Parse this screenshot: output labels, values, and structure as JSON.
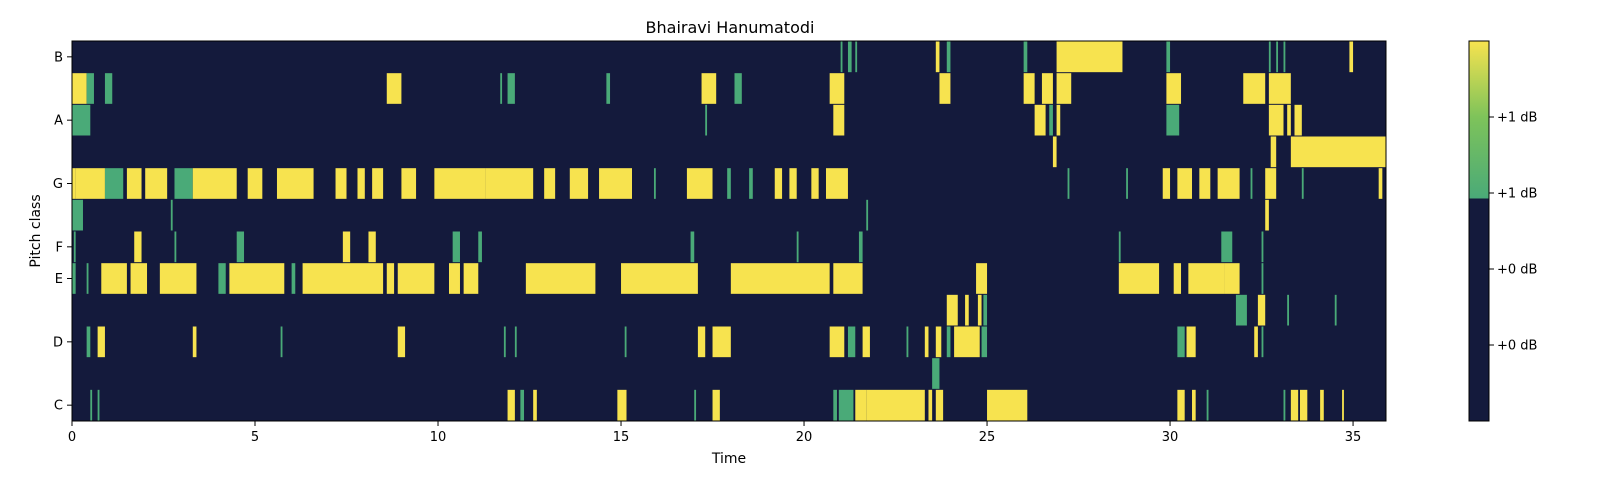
{
  "chart_data": {
    "type": "heatmap",
    "title": "Bhairavi Hanumatodi",
    "xlabel": "Time",
    "ylabel": "Pitch class",
    "xlim": [
      0,
      35.9
    ],
    "x_ticks": [
      0,
      5,
      10,
      15,
      20,
      25,
      30,
      35
    ],
    "x_tick_labels": [
      "0",
      "5",
      "10",
      "15",
      "20",
      "25",
      "30",
      "35"
    ],
    "rows": [
      "C",
      "C#",
      "D",
      "D#",
      "E",
      "F",
      "F#",
      "G",
      "G#",
      "A",
      "A#",
      "B"
    ],
    "y_tick_labels": [
      "C",
      "D",
      "E",
      "F",
      "G",
      "A",
      "B"
    ],
    "colormap": {
      "low": "#141a3c",
      "mid": "#4aaa78",
      "high": "#f7e34f"
    },
    "colorbar_labels": [
      "+1 dB",
      "+1 dB",
      "+0 dB",
      "+0 dB"
    ],
    "segments": [
      {
        "pitch": "C",
        "intervals": [
          [
            0.5,
            0.55,
            1
          ],
          [
            0.7,
            0.75,
            1
          ],
          [
            11.9,
            12.1,
            2
          ],
          [
            12.25,
            12.35,
            1
          ],
          [
            12.6,
            12.7,
            2
          ],
          [
            14.9,
            15.15,
            2
          ],
          [
            17,
            17.05,
            1
          ],
          [
            17.5,
            17.7,
            2
          ],
          [
            20.8,
            20.9,
            1
          ],
          [
            20.95,
            21.35,
            1
          ],
          [
            21.4,
            21.7,
            2
          ],
          [
            21.7,
            23.3,
            2
          ],
          [
            23.4,
            23.5,
            2
          ],
          [
            23.6,
            23.8,
            2
          ],
          [
            25,
            26.1,
            2
          ],
          [
            30.2,
            30.4,
            2
          ],
          [
            30.6,
            30.7,
            2
          ],
          [
            31,
            31.05,
            1
          ],
          [
            33.1,
            33.15,
            1
          ],
          [
            33.3,
            33.5,
            2
          ],
          [
            33.55,
            33.75,
            2
          ],
          [
            34.1,
            34.2,
            2
          ],
          [
            34.7,
            34.75,
            2
          ]
        ]
      },
      {
        "pitch": "C#",
        "intervals": [
          [
            23.5,
            23.7,
            1
          ]
        ]
      },
      {
        "pitch": "D",
        "intervals": [
          [
            0.4,
            0.5,
            1
          ],
          [
            0.7,
            0.9,
            2
          ],
          [
            3.3,
            3.4,
            2
          ],
          [
            5.7,
            5.75,
            1
          ],
          [
            8.9,
            9.1,
            2
          ],
          [
            11.8,
            11.85,
            1
          ],
          [
            12.1,
            12.15,
            1
          ],
          [
            15.1,
            15.15,
            1
          ],
          [
            17.1,
            17.3,
            2
          ],
          [
            17.5,
            18,
            2
          ],
          [
            20.7,
            21.1,
            2
          ],
          [
            21.2,
            21.4,
            1
          ],
          [
            21.6,
            21.8,
            2
          ],
          [
            22.8,
            22.85,
            1
          ],
          [
            23.3,
            23.4,
            2
          ],
          [
            23.6,
            23.75,
            2
          ],
          [
            23.9,
            24,
            1
          ],
          [
            24.1,
            24.8,
            2
          ],
          [
            24.85,
            25,
            1
          ],
          [
            30.2,
            30.4,
            1
          ],
          [
            30.45,
            30.7,
            2
          ],
          [
            32.3,
            32.4,
            2
          ],
          [
            32.5,
            32.55,
            1
          ]
        ]
      },
      {
        "pitch": "D#",
        "intervals": [
          [
            23.9,
            24.2,
            2
          ],
          [
            24.4,
            24.5,
            2
          ],
          [
            24.75,
            24.85,
            2
          ],
          [
            24.9,
            25,
            1
          ],
          [
            31.8,
            32.1,
            1
          ],
          [
            32.4,
            32.6,
            2
          ],
          [
            33.2,
            33.25,
            1
          ],
          [
            34.5,
            34.55,
            1
          ]
        ]
      },
      {
        "pitch": "E",
        "intervals": [
          [
            0,
            0.1,
            1
          ],
          [
            0.4,
            0.45,
            1
          ],
          [
            0.8,
            1.5,
            2
          ],
          [
            1.6,
            2.05,
            2
          ],
          [
            2.4,
            3.4,
            2
          ],
          [
            4,
            4.2,
            1
          ],
          [
            4.3,
            5.8,
            2
          ],
          [
            6,
            6.1,
            1
          ],
          [
            6.3,
            8.5,
            2
          ],
          [
            8.6,
            8.8,
            2
          ],
          [
            8.9,
            9.9,
            2
          ],
          [
            10.3,
            10.6,
            2
          ],
          [
            10.7,
            11.1,
            2
          ],
          [
            12.4,
            14.3,
            2
          ],
          [
            15,
            17.1,
            2
          ],
          [
            18,
            20.7,
            2
          ],
          [
            20.8,
            21.6,
            2
          ],
          [
            24.7,
            25,
            2
          ],
          [
            28.6,
            29.7,
            2
          ],
          [
            30.1,
            30.3,
            2
          ],
          [
            30.5,
            31.5,
            2
          ],
          [
            31.5,
            31.9,
            2
          ],
          [
            32.5,
            32.55,
            1
          ]
        ]
      },
      {
        "pitch": "F",
        "intervals": [
          [
            0.05,
            0.1,
            1
          ],
          [
            1.7,
            1.9,
            2
          ],
          [
            2.8,
            2.85,
            1
          ],
          [
            4.5,
            4.7,
            1
          ],
          [
            7.4,
            7.6,
            2
          ],
          [
            8.1,
            8.3,
            2
          ],
          [
            10.4,
            10.6,
            1
          ],
          [
            11.1,
            11.2,
            1
          ],
          [
            16.9,
            17,
            1
          ],
          [
            19.8,
            19.85,
            1
          ],
          [
            21.5,
            21.6,
            1
          ],
          [
            28.6,
            28.65,
            1
          ],
          [
            31.4,
            31.7,
            1
          ],
          [
            32.5,
            32.55,
            1
          ]
        ]
      },
      {
        "pitch": "F#",
        "intervals": [
          [
            0,
            0.3,
            1
          ],
          [
            2.7,
            2.75,
            1
          ],
          [
            21.7,
            21.75,
            1
          ],
          [
            32.6,
            32.7,
            2
          ]
        ]
      },
      {
        "pitch": "G",
        "intervals": [
          [
            0,
            0.1,
            2
          ],
          [
            0.1,
            0.9,
            2
          ],
          [
            0.9,
            1.4,
            1
          ],
          [
            1.5,
            1.9,
            2
          ],
          [
            2.0,
            2.6,
            2
          ],
          [
            2.8,
            3.3,
            1
          ],
          [
            3.3,
            4.5,
            2
          ],
          [
            4.8,
            5.2,
            2
          ],
          [
            5.6,
            6.6,
            2
          ],
          [
            7.2,
            7.5,
            2
          ],
          [
            7.8,
            8.0,
            2
          ],
          [
            8.2,
            8.5,
            2
          ],
          [
            9.0,
            9.4,
            2
          ],
          [
            9.9,
            11.3,
            2
          ],
          [
            11.3,
            12.6,
            2
          ],
          [
            12.9,
            13.2,
            2
          ],
          [
            13.6,
            14.1,
            2
          ],
          [
            14.4,
            15.3,
            2
          ],
          [
            15.9,
            15.95,
            1
          ],
          [
            16.8,
            17.5,
            2
          ],
          [
            17.9,
            18.0,
            1
          ],
          [
            18.5,
            18.6,
            1
          ],
          [
            19.2,
            19.4,
            2
          ],
          [
            19.6,
            19.8,
            2
          ],
          [
            20.2,
            20.4,
            2
          ],
          [
            20.6,
            21.2,
            2
          ],
          [
            27.2,
            27.25,
            1
          ],
          [
            28.8,
            28.85,
            1
          ],
          [
            29.8,
            30.0,
            2
          ],
          [
            30.2,
            30.6,
            2
          ],
          [
            30.8,
            31.1,
            2
          ],
          [
            31.3,
            31.9,
            2
          ],
          [
            32.2,
            32.25,
            1
          ],
          [
            32.6,
            32.9,
            2
          ],
          [
            33.6,
            33.65,
            1
          ],
          [
            35.7,
            35.8,
            2
          ]
        ]
      },
      {
        "pitch": "G#",
        "intervals": [
          [
            26.8,
            26.9,
            2
          ],
          [
            32.75,
            32.9,
            2
          ],
          [
            33.3,
            35.9,
            2
          ]
        ]
      },
      {
        "pitch": "A",
        "intervals": [
          [
            0,
            0.5,
            1
          ],
          [
            17.3,
            17.35,
            1
          ],
          [
            20.8,
            21.1,
            2
          ],
          [
            26.3,
            26.6,
            2
          ],
          [
            26.7,
            26.8,
            1
          ],
          [
            26.9,
            27.0,
            2
          ],
          [
            29.9,
            30.25,
            1
          ],
          [
            32.7,
            33.1,
            2
          ],
          [
            33.2,
            33.3,
            2
          ],
          [
            33.4,
            33.6,
            2
          ]
        ]
      },
      {
        "pitch": "A#",
        "intervals": [
          [
            0,
            0.4,
            2
          ],
          [
            0.4,
            0.6,
            1
          ],
          [
            0.9,
            1.1,
            1
          ],
          [
            8.6,
            9,
            2
          ],
          [
            11.7,
            11.75,
            1
          ],
          [
            11.9,
            12.1,
            1
          ],
          [
            14.6,
            14.7,
            1
          ],
          [
            17.2,
            17.6,
            2
          ],
          [
            18.1,
            18.3,
            1
          ],
          [
            20.7,
            21.1,
            2
          ],
          [
            23.7,
            24,
            2
          ],
          [
            26,
            26.3,
            2
          ],
          [
            26.5,
            26.8,
            2
          ],
          [
            26.9,
            27.3,
            2
          ],
          [
            29.9,
            30.3,
            2
          ],
          [
            32.0,
            32.6,
            2
          ],
          [
            32.7,
            33.3,
            2
          ]
        ]
      },
      {
        "pitch": "B",
        "intervals": [
          [
            21,
            21.05,
            1
          ],
          [
            21.2,
            21.3,
            1
          ],
          [
            21.4,
            21.45,
            1
          ],
          [
            23.6,
            23.7,
            2
          ],
          [
            23.9,
            24.0,
            1
          ],
          [
            26.0,
            26.1,
            1
          ],
          [
            26.9,
            28.7,
            2
          ],
          [
            29.9,
            30.0,
            1
          ],
          [
            32.7,
            32.75,
            1
          ],
          [
            32.9,
            32.95,
            1
          ],
          [
            33.1,
            33.15,
            1
          ],
          [
            34.9,
            35.0,
            2
          ]
        ]
      }
    ]
  }
}
